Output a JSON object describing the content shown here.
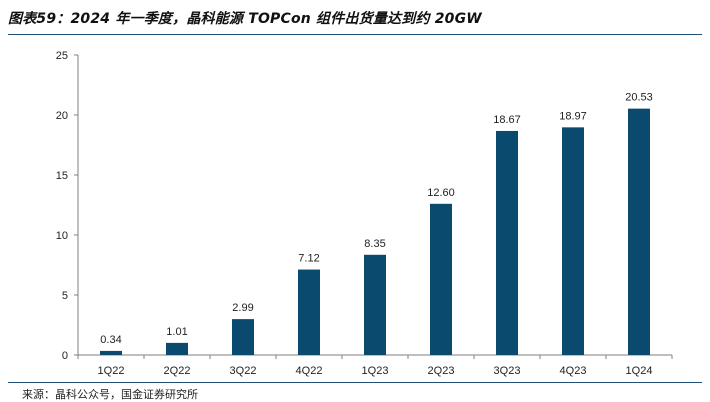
{
  "header": {
    "title": "图表59：2024 年一季度，晶科能源 TOPCon 组件出货量达到约 20GW"
  },
  "footer": {
    "source": "来源：晶科公众号，国金证券研究所"
  },
  "colors": {
    "bar": "#0b4a6f",
    "rule": "#1f4e79",
    "axis": "#7f7f7f"
  },
  "chart_data": {
    "type": "bar",
    "title": "图表59：2024 年一季度，晶科能源 TOPCon 组件出货量达到约 20GW",
    "xlabel": "",
    "ylabel": "",
    "categories": [
      "1Q22",
      "2Q22",
      "3Q22",
      "4Q22",
      "1Q23",
      "2Q23",
      "3Q23",
      "4Q23",
      "1Q24"
    ],
    "values": [
      0.34,
      1.01,
      2.99,
      7.12,
      8.35,
      12.6,
      18.67,
      18.97,
      20.53
    ],
    "data_labels": [
      "0.34",
      "1.01",
      "2.99",
      "7.12",
      "8.35",
      "12.60",
      "18.67",
      "18.97",
      "20.53"
    ],
    "ylim": [
      0,
      25
    ],
    "yticks": [
      0,
      5,
      10,
      15,
      20,
      25
    ],
    "grid": false,
    "legend": "none"
  }
}
